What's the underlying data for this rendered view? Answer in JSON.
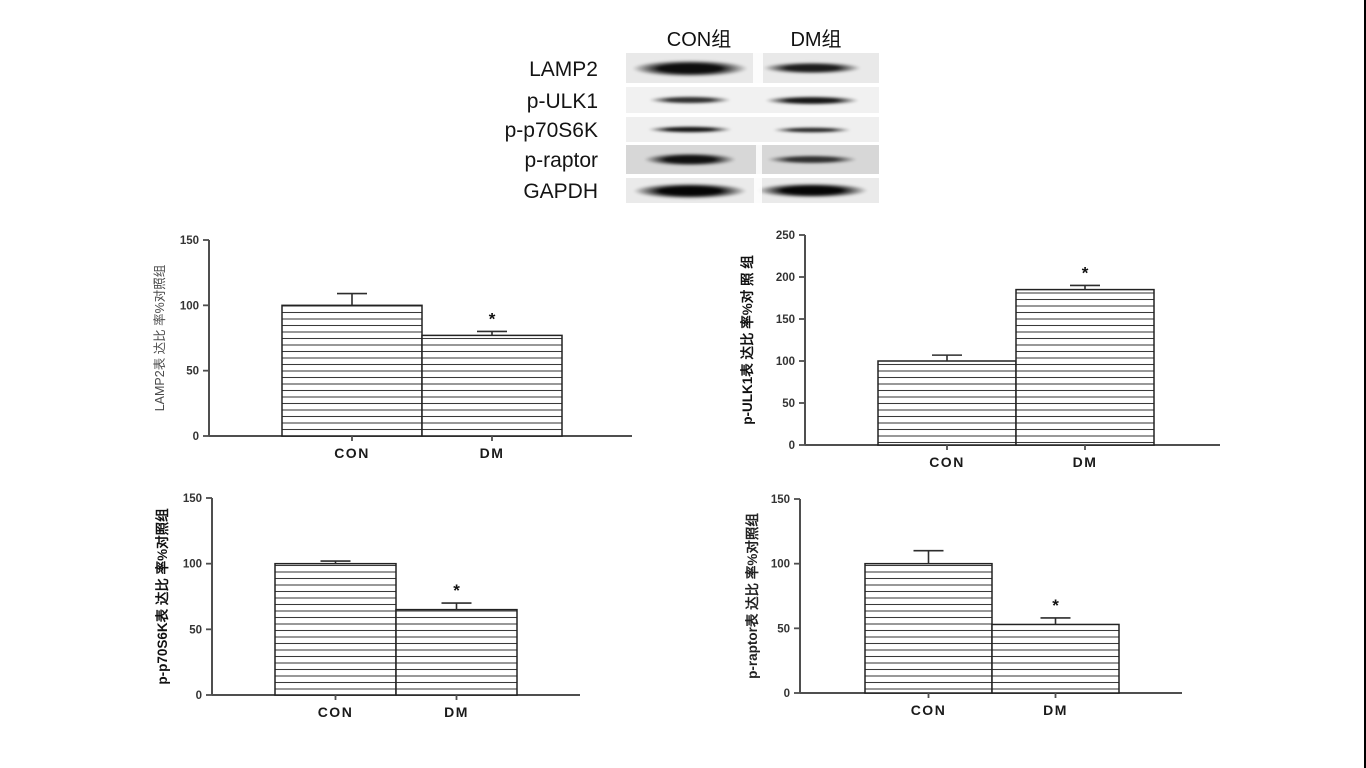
{
  "figure": {
    "background": "#ffffff",
    "right_border_color": "#000000"
  },
  "blot": {
    "lane_headers": [
      "CON组",
      "DM组"
    ],
    "rows": [
      {
        "label": "LAMP2",
        "con_band": "strong",
        "dm_band": "medium"
      },
      {
        "label": "p-ULK1",
        "con_band": "medium",
        "dm_band": "strong"
      },
      {
        "label": "p-p70S6K",
        "con_band": "medium",
        "dm_band": "medium"
      },
      {
        "label": "p-raptor",
        "con_band": "strong",
        "dm_band": "medium"
      },
      {
        "label": "GAPDH",
        "con_band": "strong",
        "dm_band": "strong"
      }
    ]
  },
  "chart_data": [
    {
      "type": "bar",
      "title": "",
      "ylabel": "LAMP2表 达比 率%对照组",
      "xlabel": "",
      "categories": [
        "CON",
        "DM"
      ],
      "values": [
        100,
        77
      ],
      "errors_plus": [
        9,
        3
      ],
      "significance": [
        "",
        "*"
      ],
      "ylim": [
        0,
        150
      ],
      "yticks": [
        0,
        50,
        100,
        150
      ],
      "grid": "off",
      "legend": "none",
      "bar_fill": "#ffffff",
      "bar_hatch": "horizontal-lines"
    },
    {
      "type": "bar",
      "title": "",
      "ylabel": "p-ULK1表 达比 率%对 照 组",
      "xlabel": "",
      "categories": [
        "CON",
        "DM"
      ],
      "values": [
        100,
        185
      ],
      "errors_plus": [
        7,
        5
      ],
      "significance": [
        "",
        "*"
      ],
      "ylim": [
        0,
        250
      ],
      "yticks": [
        0,
        50,
        100,
        150,
        200,
        250
      ],
      "grid": "off",
      "legend": "none",
      "bar_fill": "#ffffff",
      "bar_hatch": "horizontal-lines"
    },
    {
      "type": "bar",
      "title": "",
      "ylabel": "p-p70S6K表 达比 率%对照组",
      "xlabel": "",
      "categories": [
        "CON",
        "DM"
      ],
      "values": [
        100,
        65
      ],
      "errors_plus": [
        2,
        5
      ],
      "significance": [
        "",
        "*"
      ],
      "ylim": [
        0,
        150
      ],
      "yticks": [
        0,
        50,
        100,
        150
      ],
      "grid": "off",
      "legend": "none",
      "bar_fill": "#ffffff",
      "bar_hatch": "horizontal-lines"
    },
    {
      "type": "bar",
      "title": "",
      "ylabel": "p-raptor表 达比 率%对照组",
      "xlabel": "",
      "categories": [
        "CON",
        "DM"
      ],
      "values": [
        100,
        53
      ],
      "errors_plus": [
        10,
        5
      ],
      "significance": [
        "",
        "*"
      ],
      "ylim": [
        0,
        150
      ],
      "yticks": [
        0,
        50,
        100,
        150
      ],
      "grid": "off",
      "legend": "none",
      "bar_fill": "#ffffff",
      "bar_hatch": "horizontal-lines"
    }
  ]
}
